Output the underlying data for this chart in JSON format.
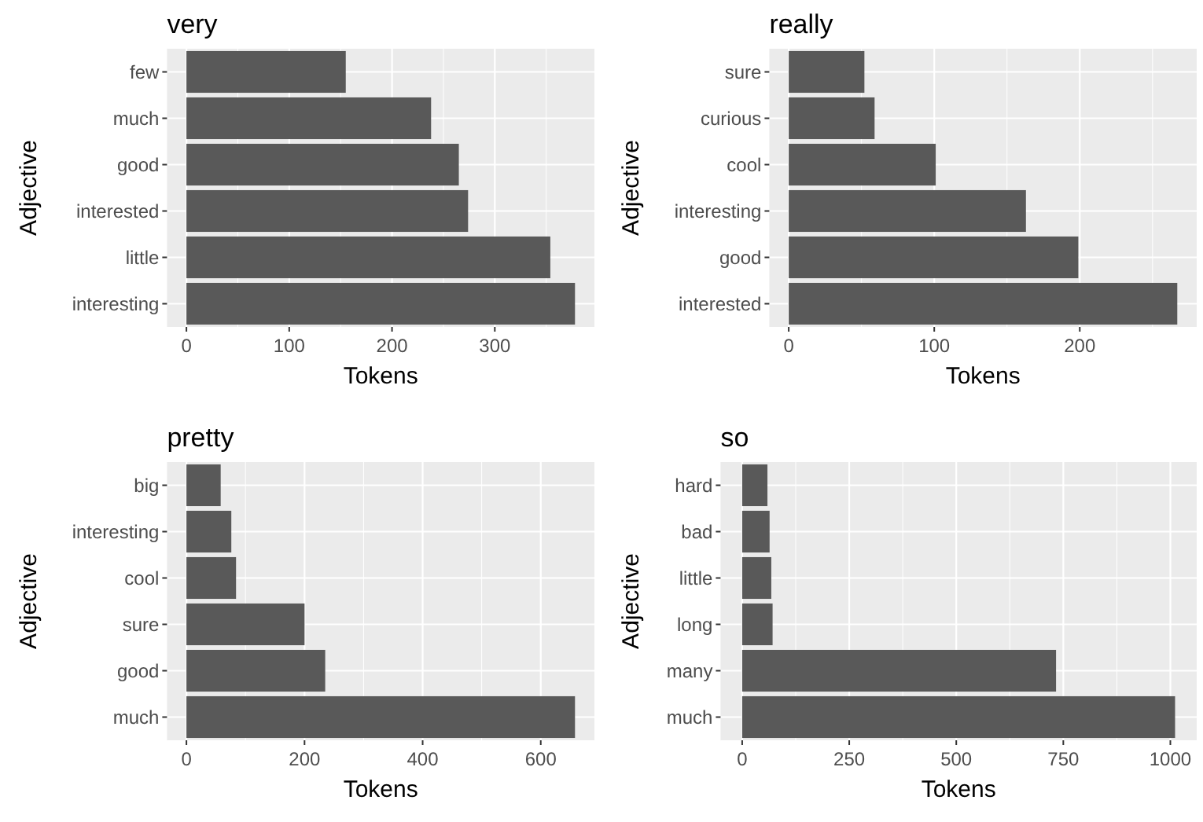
{
  "chart_data": [
    {
      "type": "bar",
      "orientation": "horizontal",
      "title": "very",
      "xlabel": "Tokens",
      "ylabel": "Adjective",
      "categories": [
        "few",
        "much",
        "good",
        "interested",
        "little",
        "interesting"
      ],
      "values": [
        155,
        238,
        265,
        274,
        354,
        378
      ],
      "color": "#595959",
      "xlim": [
        -18.9,
        396.9
      ],
      "xticks": [
        0,
        100,
        200,
        300
      ],
      "grid": true
    },
    {
      "type": "bar",
      "orientation": "horizontal",
      "title": "really",
      "xlabel": "Tokens",
      "ylabel": "Adjective",
      "categories": [
        "sure",
        "curious",
        "cool",
        "interesting",
        "good",
        "interested"
      ],
      "values": [
        52,
        59,
        101,
        163,
        199,
        267
      ],
      "color": "#595959",
      "xlim": [
        -13.35,
        280.35
      ],
      "xticks": [
        0,
        100,
        200
      ],
      "grid": true
    },
    {
      "type": "bar",
      "orientation": "horizontal",
      "title": "pretty",
      "xlabel": "Tokens",
      "ylabel": "Adjective",
      "categories": [
        "big",
        "interesting",
        "cool",
        "sure",
        "good",
        "much"
      ],
      "values": [
        58,
        76,
        84,
        200,
        235,
        658
      ],
      "color": "#595959",
      "xlim": [
        -32.9,
        690.9
      ],
      "xticks": [
        0,
        200,
        400,
        600
      ],
      "grid": true
    },
    {
      "type": "bar",
      "orientation": "horizontal",
      "title": "so",
      "xlabel": "Tokens",
      "ylabel": "Adjective",
      "categories": [
        "hard",
        "bad",
        "little",
        "long",
        "many",
        "much"
      ],
      "values": [
        59,
        64,
        68,
        71,
        733,
        1011
      ],
      "color": "#595959",
      "xlim": [
        -50.55,
        1061.55
      ],
      "xticks": [
        0,
        250,
        500,
        750,
        1000
      ],
      "grid": true
    }
  ]
}
